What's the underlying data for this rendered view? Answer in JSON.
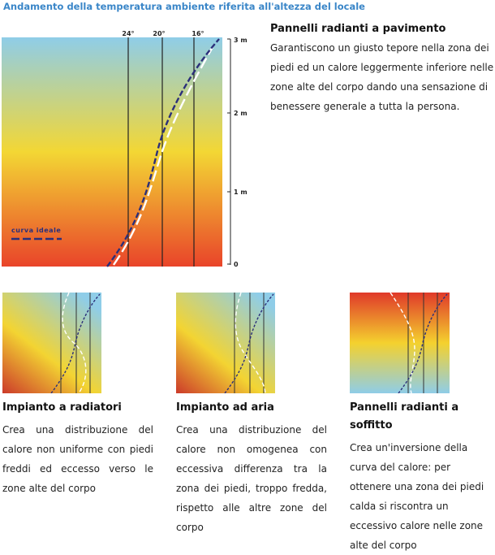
{
  "header": {
    "title": "Andamento della temperatura ambiente riferita all'altezza del locale"
  },
  "main_chart": {
    "temp_labels": [
      "24°",
      "20°",
      "16°"
    ],
    "height_labels": [
      "3 m",
      "2 m",
      "1 m",
      "0"
    ],
    "legend": "curva ideale",
    "colors": {
      "warm": "#e8402a",
      "mid": "#f4d22e",
      "cool": "#8fcde8",
      "curve": "#2b2f7a",
      "ideal": "#ffffff"
    }
  },
  "pavimento": {
    "title": "Pannelli radianti a pavimento",
    "text": "Garantiscono un giusto tepore nella zona dei piedi ed un calore leggermente inferiore nelle zone alte del corpo dando una sensazione di benessere generale a tutta la persona."
  },
  "radiatori": {
    "title": "Impianto a radiatori",
    "text": "Crea una distribuzione del calore non uniforme con piedi freddi ed eccesso verso le zone alte del corpo"
  },
  "aria": {
    "title": "Impianto ad aria",
    "text": "Crea una distribuzione del calore non omogenea con eccessiva differenza tra la zona dei piedi, troppo fredda, rispetto alle altre zone del corpo"
  },
  "soffitto": {
    "title": "Pannelli radianti a soffitto",
    "text": "Crea un'inversione della curva del calore: per ottenere una zona dei piedi calda si riscontra un eccessivo calore nelle zone alte del corpo"
  }
}
